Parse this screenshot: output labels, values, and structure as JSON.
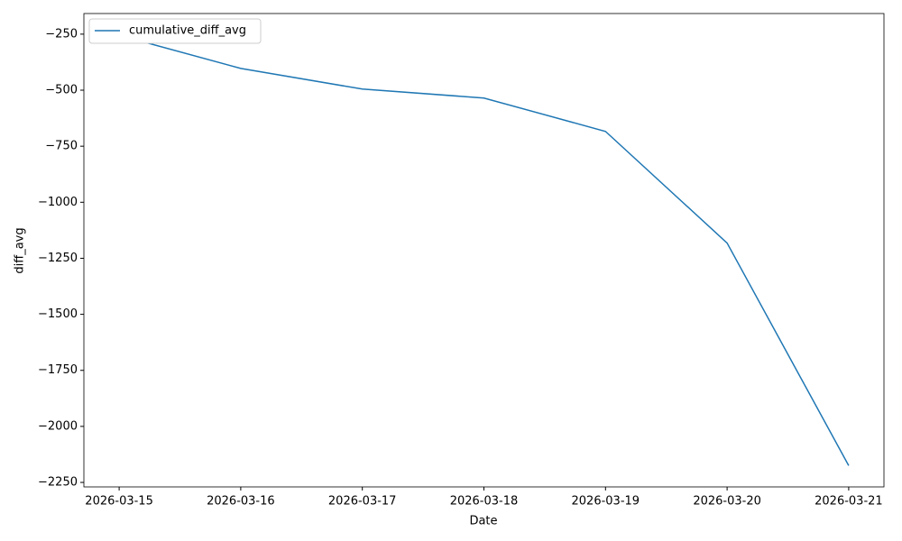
{
  "chart_data": {
    "type": "line",
    "x_label": "Date",
    "y_label": "diff_avg",
    "categories": [
      "2026-03-15",
      "2026-03-16",
      "2026-03-17",
      "2026-03-18",
      "2026-03-19",
      "2026-03-20",
      "2026-03-21"
    ],
    "series": [
      {
        "name": "cumulative_diff_avg",
        "color": "#1f77b4",
        "values": [
          -255,
          -403,
          -495,
          -535,
          -684,
          -1182,
          -2175
        ]
      }
    ],
    "ylim": [
      -2270,
      -158
    ],
    "yticks": [
      {
        "value": -250,
        "label": "−250"
      },
      {
        "value": -500,
        "label": "−500"
      },
      {
        "value": -750,
        "label": "−750"
      },
      {
        "value": -1000,
        "label": "−1000"
      },
      {
        "value": -1250,
        "label": "−1250"
      },
      {
        "value": -1500,
        "label": "−1500"
      },
      {
        "value": -1750,
        "label": "−1750"
      },
      {
        "value": -2000,
        "label": "−2000"
      },
      {
        "value": -2250,
        "label": "−2250"
      }
    ],
    "legend": "upper left",
    "grid": false
  }
}
